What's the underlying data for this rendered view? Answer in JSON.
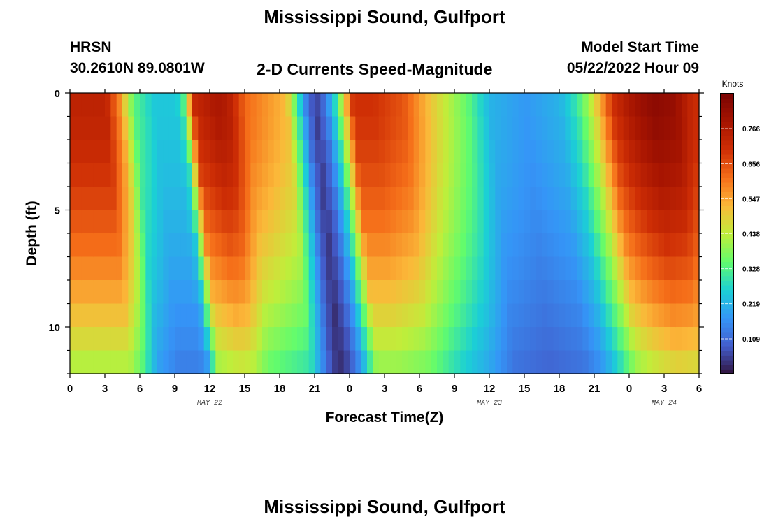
{
  "header": {
    "title": "Mississippi Sound, Gulfport",
    "station_id": "HRSN",
    "coordinates": "30.2610N  89.0801W",
    "subtitle": "2-D Currents Speed-Magnitude",
    "model_start_label": "Model Start Time",
    "model_start_value": "05/22/2022 Hour 09"
  },
  "footer": {
    "repeat_title": "Mississippi Sound, Gulfport"
  },
  "chart_data": {
    "type": "heatmap",
    "title": "2-D Currents Speed-Magnitude",
    "xlabel": "Forecast Time(Z)",
    "ylabel": "Depth (ft)",
    "xlim": [
      0,
      54
    ],
    "ylim": [
      12,
      0
    ],
    "x_tick_values": [
      0,
      3,
      6,
      9,
      12,
      15,
      18,
      21,
      24,
      27,
      30,
      33,
      36,
      39,
      42,
      45,
      48,
      51,
      54
    ],
    "x_tick_labels": [
      "0",
      "3",
      "6",
      "9",
      "12",
      "15",
      "18",
      "21",
      "0",
      "3",
      "6",
      "9",
      "12",
      "15",
      "18",
      "21",
      "0",
      "3",
      "6"
    ],
    "y_tick_values": [
      0,
      5,
      10
    ],
    "y_tick_labels": [
      "0",
      "5",
      "10"
    ],
    "date_labels": [
      {
        "x": 12,
        "label": "MAY 22"
      },
      {
        "x": 36,
        "label": "MAY 23"
      },
      {
        "x": 51,
        "label": "MAY 24"
      }
    ],
    "colorbar": {
      "label": "Knots",
      "min": 0.0,
      "max": 0.875,
      "ticks": [
        0.109,
        0.219,
        0.328,
        0.438,
        0.547,
        0.656,
        0.766
      ],
      "colormap": "turbo"
    },
    "grid": {
      "time_step_hours": 0.5,
      "depth_levels_ft": 12,
      "speed_profile_times": [
        0,
        3,
        4.2,
        5.4,
        7.2,
        9,
        9.6,
        10.6,
        12.5,
        13.5,
        15,
        18.5,
        19.5,
        20.3,
        21,
        21.8,
        22.8,
        24.2,
        26,
        28.5,
        31,
        34,
        36,
        39,
        42,
        43.4,
        44,
        45,
        46.5,
        47.6,
        48.6,
        50,
        51.8,
        53,
        54
      ],
      "speed_profile_surface": [
        0.74,
        0.74,
        0.58,
        0.34,
        0.25,
        0.25,
        0.3,
        0.72,
        0.78,
        0.76,
        0.62,
        0.52,
        0.3,
        0.12,
        0.05,
        0.12,
        0.3,
        0.7,
        0.7,
        0.65,
        0.5,
        0.35,
        0.22,
        0.18,
        0.22,
        0.3,
        0.36,
        0.48,
        0.7,
        0.76,
        0.8,
        0.84,
        0.82,
        0.74,
        0.7
      ]
    }
  }
}
